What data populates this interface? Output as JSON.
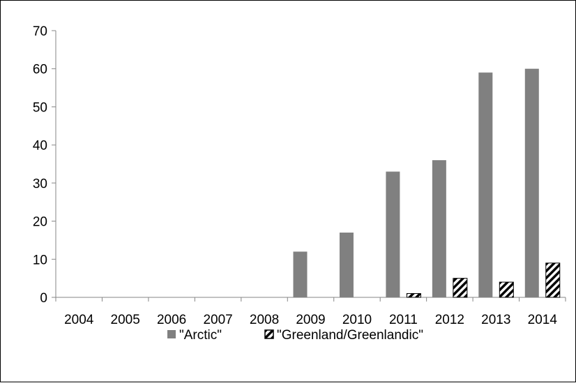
{
  "chart_data": {
    "type": "bar",
    "title": "",
    "xlabel": "",
    "ylabel": "",
    "categories": [
      "2004",
      "2005",
      "2006",
      "2007",
      "2008",
      "2009",
      "2010",
      "2011",
      "2012",
      "2013",
      "2014"
    ],
    "series": [
      {
        "name": "\"Arctic\"",
        "values": [
          0,
          0,
          0,
          0,
          0,
          12,
          17,
          33,
          36,
          59,
          60
        ],
        "color": "#808080",
        "pattern": "solid"
      },
      {
        "name": "\"Greenland/Greenlandic\"",
        "values": [
          0,
          0,
          0,
          0,
          0,
          0,
          0,
          1,
          5,
          4,
          9
        ],
        "color": "#000000",
        "pattern": "diagonal-hatch"
      }
    ],
    "ylim": [
      0,
      70
    ],
    "yticks": [
      0,
      10,
      20,
      30,
      40,
      50,
      60,
      70
    ],
    "grid": false,
    "legend_position": "bottom"
  }
}
